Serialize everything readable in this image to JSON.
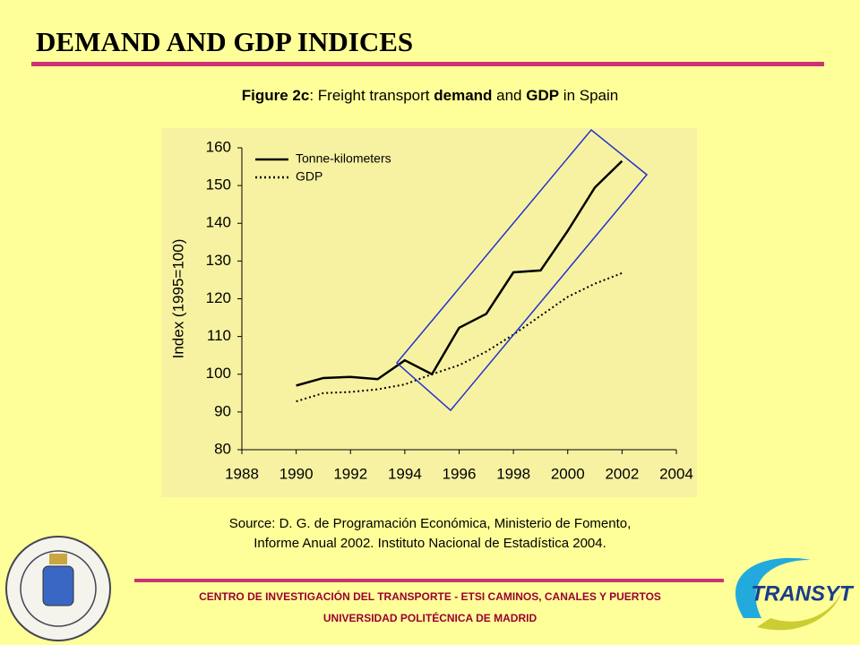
{
  "slide": {
    "heading": "DEMAND AND GDP INDICES",
    "source": [
      "Source: D. G. de Programación Económica, Ministerio de Fomento,",
      "Informe Anual 2002. Instituto Nacional de Estadística 2004."
    ],
    "footer": [
      "CENTRO DE INVESTIGACIÓN DEL TRANSPORTE - ETSI CAMINOS, CANALES Y PUERTOS",
      "UNIVERSIDAD POLITÉCNICA DE MADRID"
    ],
    "logo": "TRANSYT"
  },
  "chart_data": {
    "type": "line",
    "title": [
      "Figure 2c",
      ":  Freight transport ",
      "demand",
      " and ",
      "GDP",
      " in Spain"
    ],
    "title_bold": [
      true,
      false,
      true,
      false,
      true,
      false
    ],
    "y_label": "Index (1995=100)",
    "x": [
      1990,
      1991,
      1992,
      1993,
      1994,
      1995,
      1996,
      1997,
      1998,
      1999,
      2000,
      2001,
      2002
    ],
    "series": [
      {
        "name": "Tonne-kilometers",
        "color": "#000000",
        "dash": "solid",
        "values": [
          97,
          99,
          99.3,
          98.7,
          103.7,
          100,
          112.3,
          116,
          127,
          127.5,
          138,
          149.5,
          156.5
        ]
      },
      {
        "name": "GDP",
        "color": "#000000",
        "dash": "dotted",
        "values": [
          92.8,
          95,
          95.3,
          96,
          97.3,
          100,
          102.4,
          106,
          110.5,
          115.5,
          120.5,
          124,
          126.8
        ]
      }
    ],
    "xlim": [
      1988,
      2004
    ],
    "xticks": [
      1988,
      1990,
      1992,
      1994,
      1996,
      1998,
      2000,
      2002,
      2004
    ],
    "ylim": [
      80,
      160
    ],
    "yticks": [
      80,
      90,
      100,
      110,
      120,
      130,
      140,
      150,
      160
    ],
    "grid": false,
    "legend": "top-left"
  }
}
